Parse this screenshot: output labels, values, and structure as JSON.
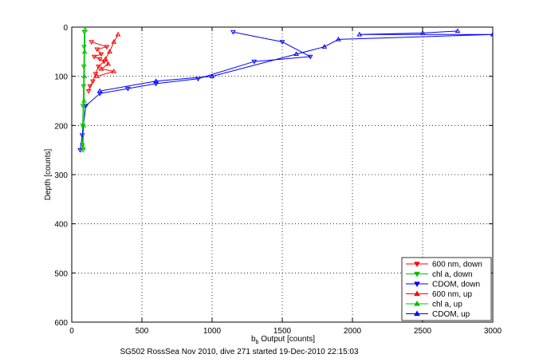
{
  "chart_data": {
    "type": "scatter",
    "xlabel": "b",
    "xlabel_sub": "b",
    "xlabel_rest": " Output [counts]",
    "ylabel": "Depth [counts]",
    "caption": "SG502 RossSea Nov 2010, dive 271 started 19-Dec-2010 22:15:03",
    "xlim": [
      0,
      3000
    ],
    "ylim": [
      0,
      600
    ],
    "y_reversed": true,
    "grid": true,
    "legend_position": "bottom-right",
    "xticks": [
      0,
      500,
      1000,
      1500,
      2000,
      2500,
      3000
    ],
    "yticks": [
      0,
      100,
      200,
      300,
      400,
      500,
      600
    ],
    "series": [
      {
        "name": "600 nm, down",
        "color": "#ff0000",
        "marker": "triangle-down",
        "points": [
          [
            140,
            30
          ],
          [
            180,
            45
          ],
          [
            210,
            55
          ],
          [
            160,
            60
          ],
          [
            230,
            70
          ],
          [
            190,
            80
          ],
          [
            250,
            40
          ],
          [
            170,
            95
          ],
          [
            150,
            110
          ],
          [
            130,
            120
          ],
          [
            200,
            65
          ],
          [
            120,
            130
          ]
        ]
      },
      {
        "name": "chl a, down",
        "color": "#00c000",
        "marker": "triangle-down",
        "points": [
          [
            90,
            10
          ],
          [
            88,
            40
          ],
          [
            86,
            80
          ],
          [
            84,
            120
          ],
          [
            80,
            160
          ],
          [
            78,
            200
          ],
          [
            76,
            240
          ],
          [
            80,
            250
          ]
        ]
      },
      {
        "name": "CDOM, down",
        "color": "#0000ff",
        "marker": "triangle-down",
        "points": [
          [
            1150,
            10
          ],
          [
            1500,
            30
          ],
          [
            1700,
            60
          ],
          [
            1300,
            70
          ],
          [
            900,
            105
          ],
          [
            600,
            115
          ],
          [
            400,
            125
          ],
          [
            200,
            135
          ],
          [
            100,
            160
          ],
          [
            75,
            220
          ],
          [
            60,
            250
          ]
        ]
      },
      {
        "name": "600 nm, up",
        "color": "#ff0000",
        "marker": "triangle-up",
        "points": [
          [
            330,
            15
          ],
          [
            300,
            30
          ],
          [
            270,
            50
          ],
          [
            240,
            65
          ],
          [
            210,
            85
          ],
          [
            180,
            100
          ],
          [
            300,
            90
          ],
          [
            260,
            75
          ]
        ]
      },
      {
        "name": "chl a, up",
        "color": "#00c000",
        "marker": "triangle-up",
        "points": [
          [
            95,
            5
          ],
          [
            92,
            50
          ],
          [
            90,
            100
          ],
          [
            88,
            150
          ],
          [
            85,
            200
          ],
          [
            82,
            245
          ]
        ]
      },
      {
        "name": "CDOM, up",
        "color": "#0000ff",
        "marker": "triangle-up",
        "points": [
          [
            2050,
            15
          ],
          [
            2500,
            12
          ],
          [
            2750,
            8
          ],
          [
            3000,
            15
          ],
          [
            1900,
            25
          ],
          [
            1800,
            40
          ],
          [
            1600,
            55
          ],
          [
            1000,
            100
          ],
          [
            600,
            110
          ],
          [
            200,
            130
          ]
        ]
      }
    ]
  }
}
